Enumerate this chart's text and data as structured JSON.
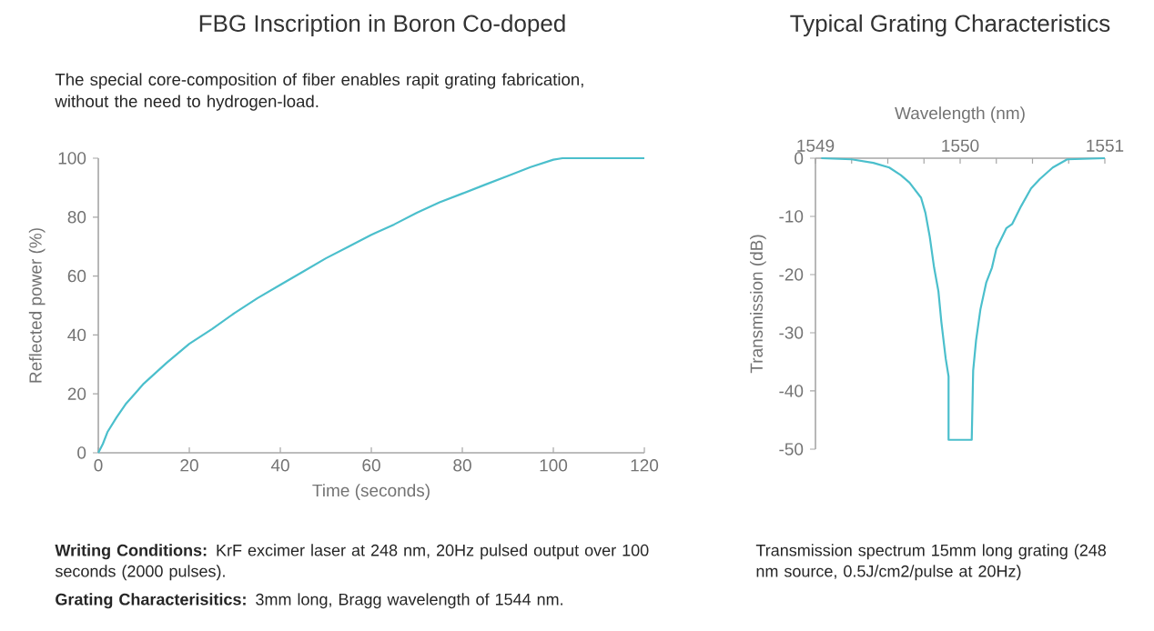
{
  "chart_data": [
    {
      "type": "line",
      "title": "FBG Inscription in Boron Co-doped",
      "subtitle": "The special core-composition of fiber enables rapit grating fabrication, without the need to hydrogen-load.",
      "xlabel": "Time (seconds)",
      "ylabel": "Reflected power (%)",
      "color": "#4bbfcc",
      "x": [
        0,
        1,
        2,
        4,
        6,
        8,
        10,
        15,
        20,
        25,
        30,
        35,
        40,
        45,
        50,
        55,
        60,
        65,
        70,
        75,
        80,
        85,
        90,
        95,
        100,
        102,
        120
      ],
      "values": [
        0,
        3,
        7,
        12,
        16.5,
        20,
        23.5,
        30.5,
        37,
        42,
        47.5,
        52.5,
        57,
        61.5,
        66,
        70,
        74,
        77.5,
        81.5,
        85,
        88,
        91,
        94,
        97,
        99.5,
        100,
        100
      ],
      "xlim": [
        0,
        120
      ],
      "ylim": [
        0,
        100
      ],
      "xticks": [
        0,
        20,
        40,
        60,
        80,
        100,
        120
      ],
      "yticks": [
        0,
        20,
        40,
        60,
        80,
        100
      ],
      "annotations": [
        "**Writing Conditions:** KrF excimer laser at 248 nm, 20Hz pulsed output over 100 seconds (2000 pulses).",
        "**Grating Characterisitics:** 3mm long, Bragg wavelength of 1544 nm."
      ]
    },
    {
      "type": "line",
      "title": "Typical Grating Characteristics",
      "xlabel": "Wavelength (nm)",
      "ylabel": "Transmission (dB)",
      "color": "#4bbfcc",
      "x": [
        1549.04,
        1549.25,
        1549.4,
        1549.51,
        1549.59,
        1549.65,
        1549.73,
        1549.76,
        1549.79,
        1549.82,
        1549.85,
        1549.87,
        1549.9,
        1549.92,
        1549.92,
        1550.08,
        1550.09,
        1550.11,
        1550.14,
        1550.18,
        1550.22,
        1550.25,
        1550.32,
        1550.36,
        1550.42,
        1550.49,
        1550.55,
        1550.64,
        1550.74,
        1551
      ],
      "values": [
        0,
        -0.2,
        -0.8,
        -1.6,
        -2.9,
        -4.2,
        -6.8,
        -9.4,
        -13.5,
        -18.8,
        -22.9,
        -28.1,
        -34.4,
        -37.5,
        -48.4,
        -48.4,
        -36.5,
        -31.3,
        -26,
        -21.4,
        -18.8,
        -15.6,
        -12,
        -11.3,
        -8.3,
        -5.2,
        -3.6,
        -1.6,
        -0.2,
        0
      ],
      "xlim": [
        1549,
        1551
      ],
      "xticks": [
        1549,
        {
          "value": 1549.25,
          "label": null
        },
        {
          "value": 1549.5,
          "label": null
        },
        {
          "value": 1549.75,
          "label": null
        },
        1550,
        {
          "value": 1550.25,
          "label": null
        },
        {
          "value": 1550.5,
          "label": null
        },
        {
          "value": 1550.75,
          "label": null
        },
        1551
      ],
      "ylim": [
        -50,
        0
      ],
      "yticks": [
        0,
        -10,
        -20,
        -30,
        -40,
        -50
      ],
      "annotations": [
        "Transmission spectrum 15mm long grating (248 nm source, 0.5J/cm2/pulse at 20Hz)"
      ]
    }
  ]
}
